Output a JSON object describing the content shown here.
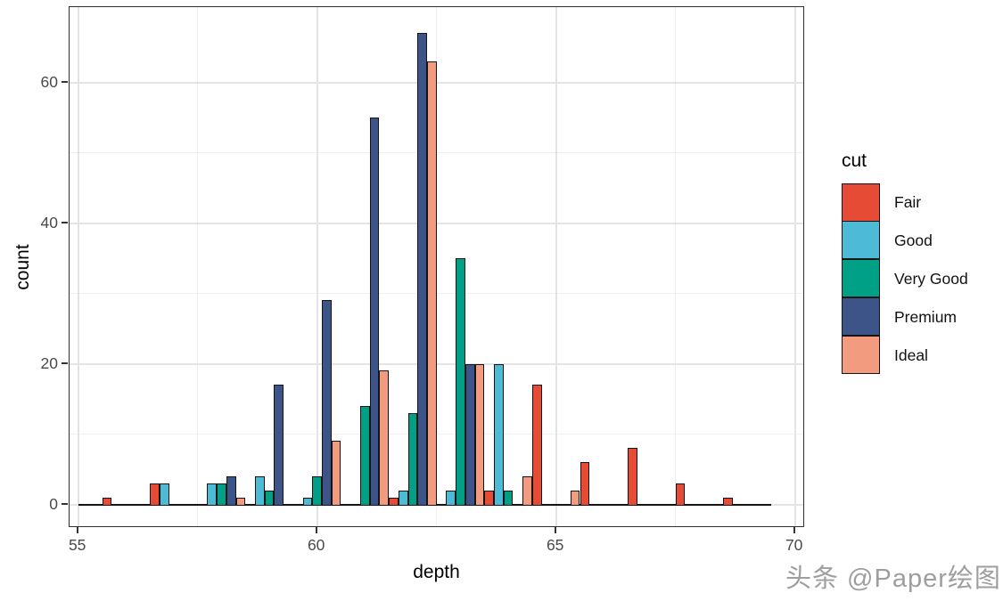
{
  "watermark": "头条 @Paper绘图",
  "legend": {
    "title": "cut",
    "items": [
      {
        "label": "Fair",
        "color": "#E64B35"
      },
      {
        "label": "Good",
        "color": "#4DBBD5"
      },
      {
        "label": "Very Good",
        "color": "#00A087"
      },
      {
        "label": "Premium",
        "color": "#3C5488"
      },
      {
        "label": "Ideal",
        "color": "#F39B7F"
      }
    ]
  },
  "chart_data": {
    "type": "bar",
    "subtype": "dodged histogram of depth by cut, binwidth 1",
    "title": "",
    "xlabel": "depth",
    "ylabel": "count",
    "legend_title": "cut",
    "legend_position": "right",
    "grid": true,
    "xlim": [
      54.8,
      70.2
    ],
    "ylim": [
      0,
      70
    ],
    "x_ticks": [
      55,
      60,
      65,
      70
    ],
    "x_minor_ticks": [
      57.5,
      62.5,
      67.5
    ],
    "y_ticks": [
      0,
      20,
      40,
      60
    ],
    "y_minor_ticks": [
      10,
      30,
      50
    ],
    "bin_width": 1,
    "bar_slot_width": 0.2,
    "baseline_span": [
      55.0,
      69.5
    ],
    "categories": [
      56,
      57,
      58,
      59,
      60,
      61,
      62,
      63,
      64,
      65,
      66,
      67,
      68,
      69
    ],
    "series": [
      {
        "name": "Fair",
        "color": "#E64B35",
        "data": [
          [
            56,
            1
          ],
          [
            57,
            3
          ],
          [
            62,
            1
          ],
          [
            64,
            2
          ],
          [
            65,
            17
          ],
          [
            66,
            6
          ],
          [
            67,
            8
          ],
          [
            68,
            3
          ],
          [
            69,
            1
          ]
        ]
      },
      {
        "name": "Good",
        "color": "#4DBBD5",
        "data": [
          [
            57,
            3
          ],
          [
            58,
            3
          ],
          [
            59,
            4
          ],
          [
            60,
            1
          ],
          [
            62,
            2
          ],
          [
            63,
            2
          ],
          [
            64,
            20
          ]
        ]
      },
      {
        "name": "Very Good",
        "color": "#00A087",
        "data": [
          [
            58,
            3
          ],
          [
            59,
            2
          ],
          [
            60,
            4
          ],
          [
            61,
            14
          ],
          [
            62,
            13
          ],
          [
            63,
            35
          ],
          [
            64,
            2
          ]
        ]
      },
      {
        "name": "Premium",
        "color": "#3C5488",
        "data": [
          [
            58,
            4
          ],
          [
            59,
            17
          ],
          [
            60,
            29
          ],
          [
            61,
            55
          ],
          [
            62,
            67
          ],
          [
            63,
            20
          ]
        ]
      },
      {
        "name": "Ideal",
        "color": "#F39B7F",
        "data": [
          [
            58,
            1
          ],
          [
            60,
            9
          ],
          [
            61,
            19
          ],
          [
            62,
            63
          ],
          [
            63,
            20
          ],
          [
            64,
            4
          ],
          [
            65,
            2
          ]
        ]
      }
    ]
  }
}
